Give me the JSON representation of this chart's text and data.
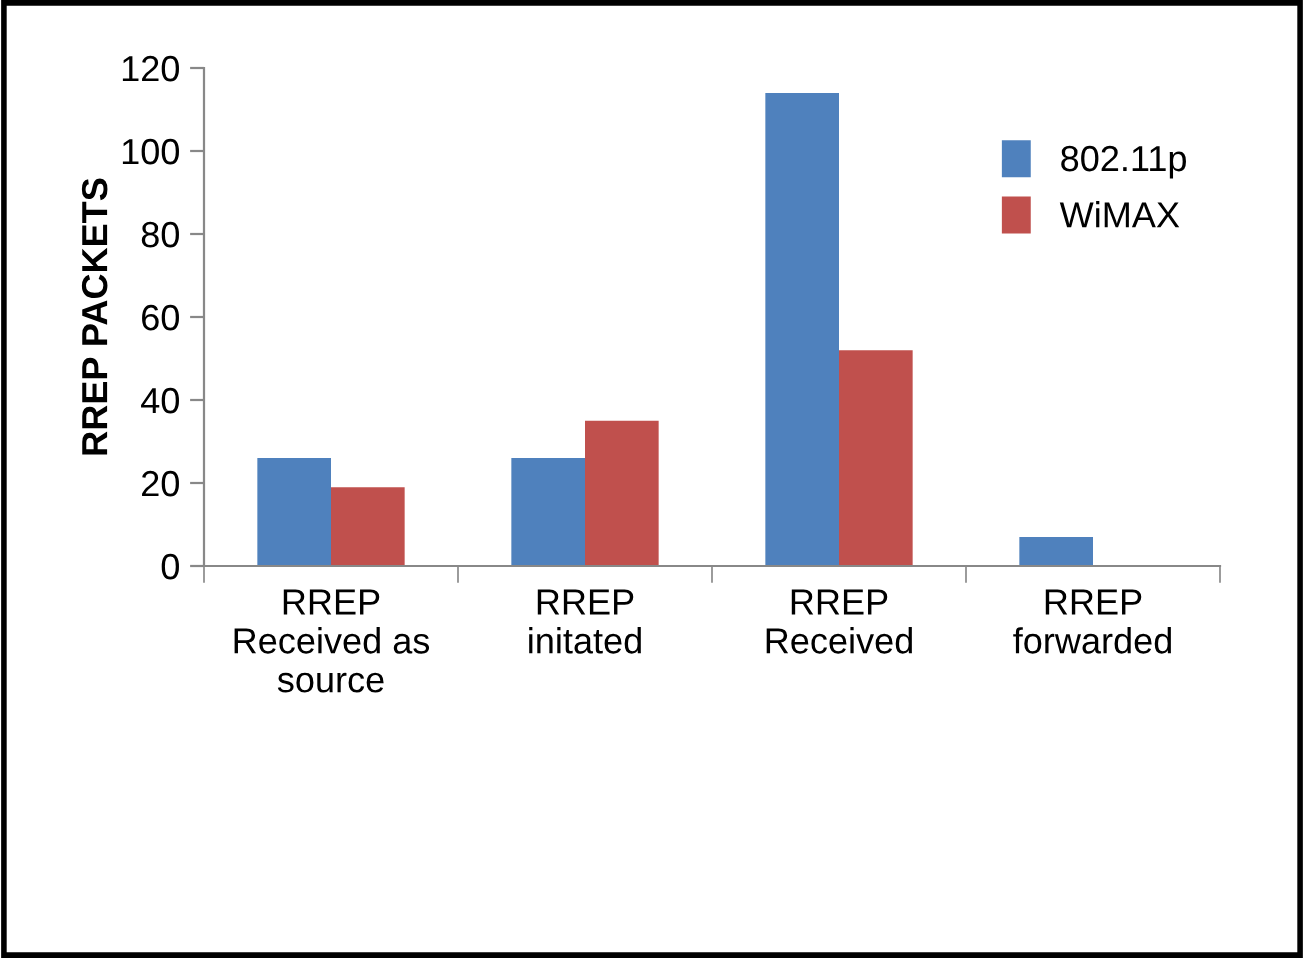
{
  "chart_data": {
    "type": "bar",
    "ylabel": "RREP PACKETS",
    "categories": [
      "RREP\nReceived as\nsource",
      "RREP\ninitated",
      "RREP\nReceived",
      "RREP\nforwarded"
    ],
    "series": [
      {
        "name": "802.11p",
        "color": "#4f81bd",
        "values": [
          26,
          26,
          114,
          7
        ]
      },
      {
        "name": "WiMAX",
        "color": "#c0504d",
        "values": [
          19,
          35,
          52,
          0
        ]
      }
    ],
    "ylim": [
      0,
      120
    ],
    "yticks": [
      0,
      20,
      40,
      60,
      80,
      100,
      120
    ],
    "grid": false,
    "legend": "top right"
  }
}
